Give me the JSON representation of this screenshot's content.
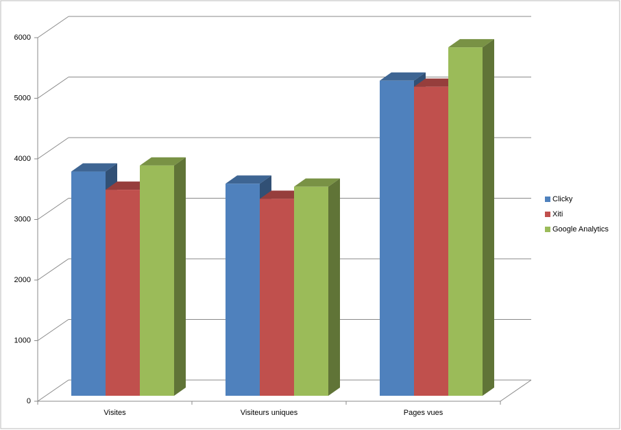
{
  "chart_data": {
    "type": "bar3d",
    "categories": [
      "Visites",
      "Visiteurs uniques",
      "Pages vues"
    ],
    "series": [
      {
        "name": "Clicky",
        "color": "#4f81bd",
        "values": [
          3700,
          3500,
          5200
        ]
      },
      {
        "name": "Xiti",
        "color": "#c0504d",
        "values": [
          3400,
          3250,
          5100
        ]
      },
      {
        "name": "Google Analytics",
        "color": "#9bbb59",
        "values": [
          3800,
          3450,
          5750
        ]
      }
    ],
    "ylim": [
      0,
      6000
    ],
    "yticks": [
      0,
      1000,
      2000,
      3000,
      4000,
      5000,
      6000
    ],
    "grid": true,
    "legend": "right"
  }
}
